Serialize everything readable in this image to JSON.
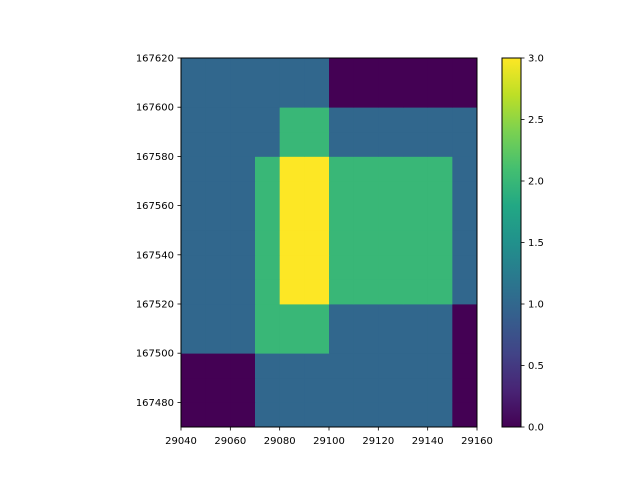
{
  "chart_data": {
    "type": "heatmap",
    "title": "",
    "xlabel": "",
    "ylabel": "",
    "x_edges": [
      29040,
      29050,
      29060,
      29070,
      29080,
      29090,
      29100,
      29110,
      29120,
      29130,
      29140,
      29150,
      29160
    ],
    "y_edges": [
      167470,
      167480,
      167490,
      167500,
      167510,
      167520,
      167530,
      167540,
      167550,
      167560,
      167570,
      167580,
      167590,
      167600,
      167610,
      167620
    ],
    "values": [
      [
        0,
        0,
        0,
        1,
        1,
        1,
        1,
        1,
        1,
        1,
        1,
        0
      ],
      [
        0,
        0,
        0,
        1,
        1,
        1,
        1,
        1,
        1,
        1,
        1,
        0
      ],
      [
        0,
        0,
        0,
        1,
        1,
        1,
        1,
        1,
        1,
        1,
        1,
        0
      ],
      [
        1,
        1,
        1,
        2,
        2,
        2,
        1,
        1,
        1,
        1,
        1,
        0
      ],
      [
        1,
        1,
        1,
        2,
        2,
        2,
        1,
        1,
        1,
        1,
        1,
        0
      ],
      [
        1,
        1,
        1,
        2,
        3,
        3,
        2,
        2,
        2,
        2,
        2,
        1
      ],
      [
        1,
        1,
        1,
        2,
        3,
        3,
        2,
        2,
        2,
        2,
        2,
        1
      ],
      [
        1,
        1,
        1,
        2,
        3,
        3,
        2,
        2,
        2,
        2,
        2,
        1
      ],
      [
        1,
        1,
        1,
        2,
        3,
        3,
        2,
        2,
        2,
        2,
        2,
        1
      ],
      [
        1,
        1,
        1,
        2,
        3,
        3,
        2,
        2,
        2,
        2,
        2,
        1
      ],
      [
        1,
        1,
        1,
        2,
        3,
        3,
        2,
        2,
        2,
        2,
        2,
        1
      ],
      [
        1,
        1,
        1,
        1,
        2,
        2,
        1,
        1,
        1,
        1,
        1,
        1
      ],
      [
        1,
        1,
        1,
        1,
        2,
        2,
        1,
        1,
        1,
        1,
        1,
        1
      ],
      [
        1,
        1,
        1,
        1,
        1,
        1,
        0,
        0,
        0,
        0,
        0,
        0
      ],
      [
        1,
        1,
        1,
        1,
        1,
        1,
        0,
        0,
        0,
        0,
        0,
        0
      ]
    ],
    "xlim": [
      29040,
      29160
    ],
    "ylim": [
      167470,
      167620
    ],
    "x_ticks": [
      "29040",
      "29060",
      "29080",
      "29100",
      "29120",
      "29140",
      "29160"
    ],
    "y_ticks": [
      "167480",
      "167500",
      "167520",
      "167540",
      "167560",
      "167580",
      "167600",
      "167620"
    ],
    "colorbar": {
      "vmin": 0,
      "vmax": 3,
      "ticks": [
        "0.0",
        "0.5",
        "1.0",
        "1.5",
        "2.0",
        "2.5",
        "3.0"
      ],
      "colormap": "viridis"
    },
    "grid": false
  }
}
